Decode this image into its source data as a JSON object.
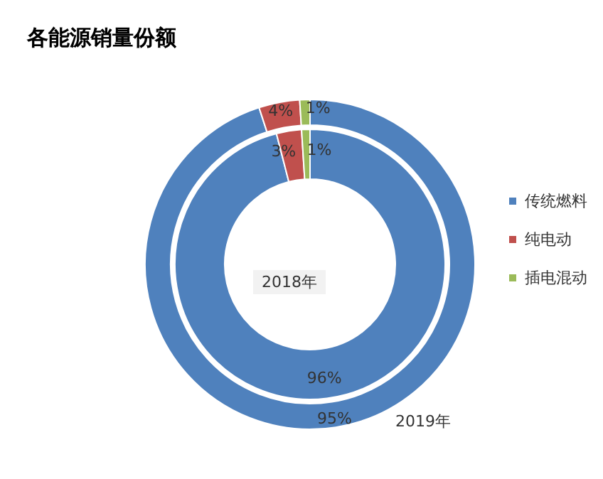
{
  "chart_data": {
    "type": "donut",
    "title": "各能源销量份额",
    "categories": [
      "传统燃料",
      "纯电动",
      "插电混动"
    ],
    "colors": [
      "#4f81bd",
      "#c0504d",
      "#9bbb59"
    ],
    "series": [
      {
        "name": "2018年",
        "values": [
          96,
          3,
          1
        ],
        "value_labels": [
          "96%",
          "3%",
          "1%"
        ]
      },
      {
        "name": "2019年",
        "values": [
          95,
          4,
          1
        ],
        "value_labels": [
          "95%",
          "4%",
          "1%"
        ]
      }
    ],
    "legend": "right"
  }
}
